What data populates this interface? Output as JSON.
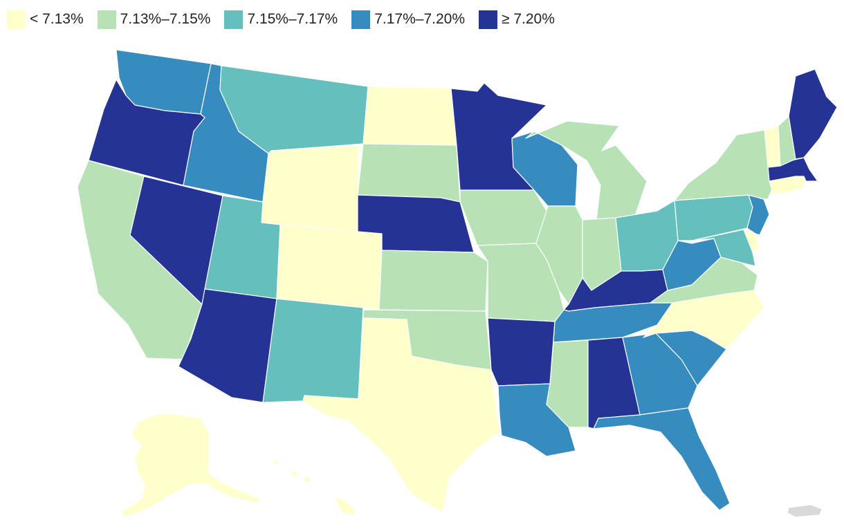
{
  "legend": [
    {
      "label": "< 7.13%",
      "color": "#ffffcc"
    },
    {
      "label": "7.13%–7.15%",
      "color": "#b6e2b6"
    },
    {
      "label": "7.15%–7.17%",
      "color": "#64bfbd"
    },
    {
      "label": "7.17%–7.20%",
      "color": "#368bbf"
    },
    {
      "label": "≥ 7.20%",
      "color": "#253494"
    }
  ],
  "states": {
    "WA": 3,
    "OR": 4,
    "CA": 1,
    "NV": 4,
    "ID": 3,
    "MT": 2,
    "WY": 0,
    "UT": 2,
    "AZ": 4,
    "CO": 0,
    "NM": 2,
    "ND": 0,
    "SD": 1,
    "NE": 4,
    "KS": 1,
    "OK": 1,
    "TX": 0,
    "MN": 4,
    "IA": 1,
    "MO": 1,
    "AR": 4,
    "LA": 3,
    "WI": 3,
    "IL": 1,
    "MI": 1,
    "IN": 1,
    "OH": 2,
    "KY": 4,
    "TN": 3,
    "MS": 1,
    "AL": 4,
    "GA": 3,
    "FL": 3,
    "SC": 3,
    "NC": 0,
    "VA": 1,
    "WV": 3,
    "PA": 2,
    "NY": 1,
    "ME": 4,
    "NH": 1,
    "VT": 0,
    "MA": 4,
    "CT": 0,
    "RI": 0,
    "NJ": 3,
    "DE": 0,
    "MD": 2,
    "AK": 0,
    "HI": 0,
    "PR": null
  },
  "no_data_color": "#d9d9d9"
}
